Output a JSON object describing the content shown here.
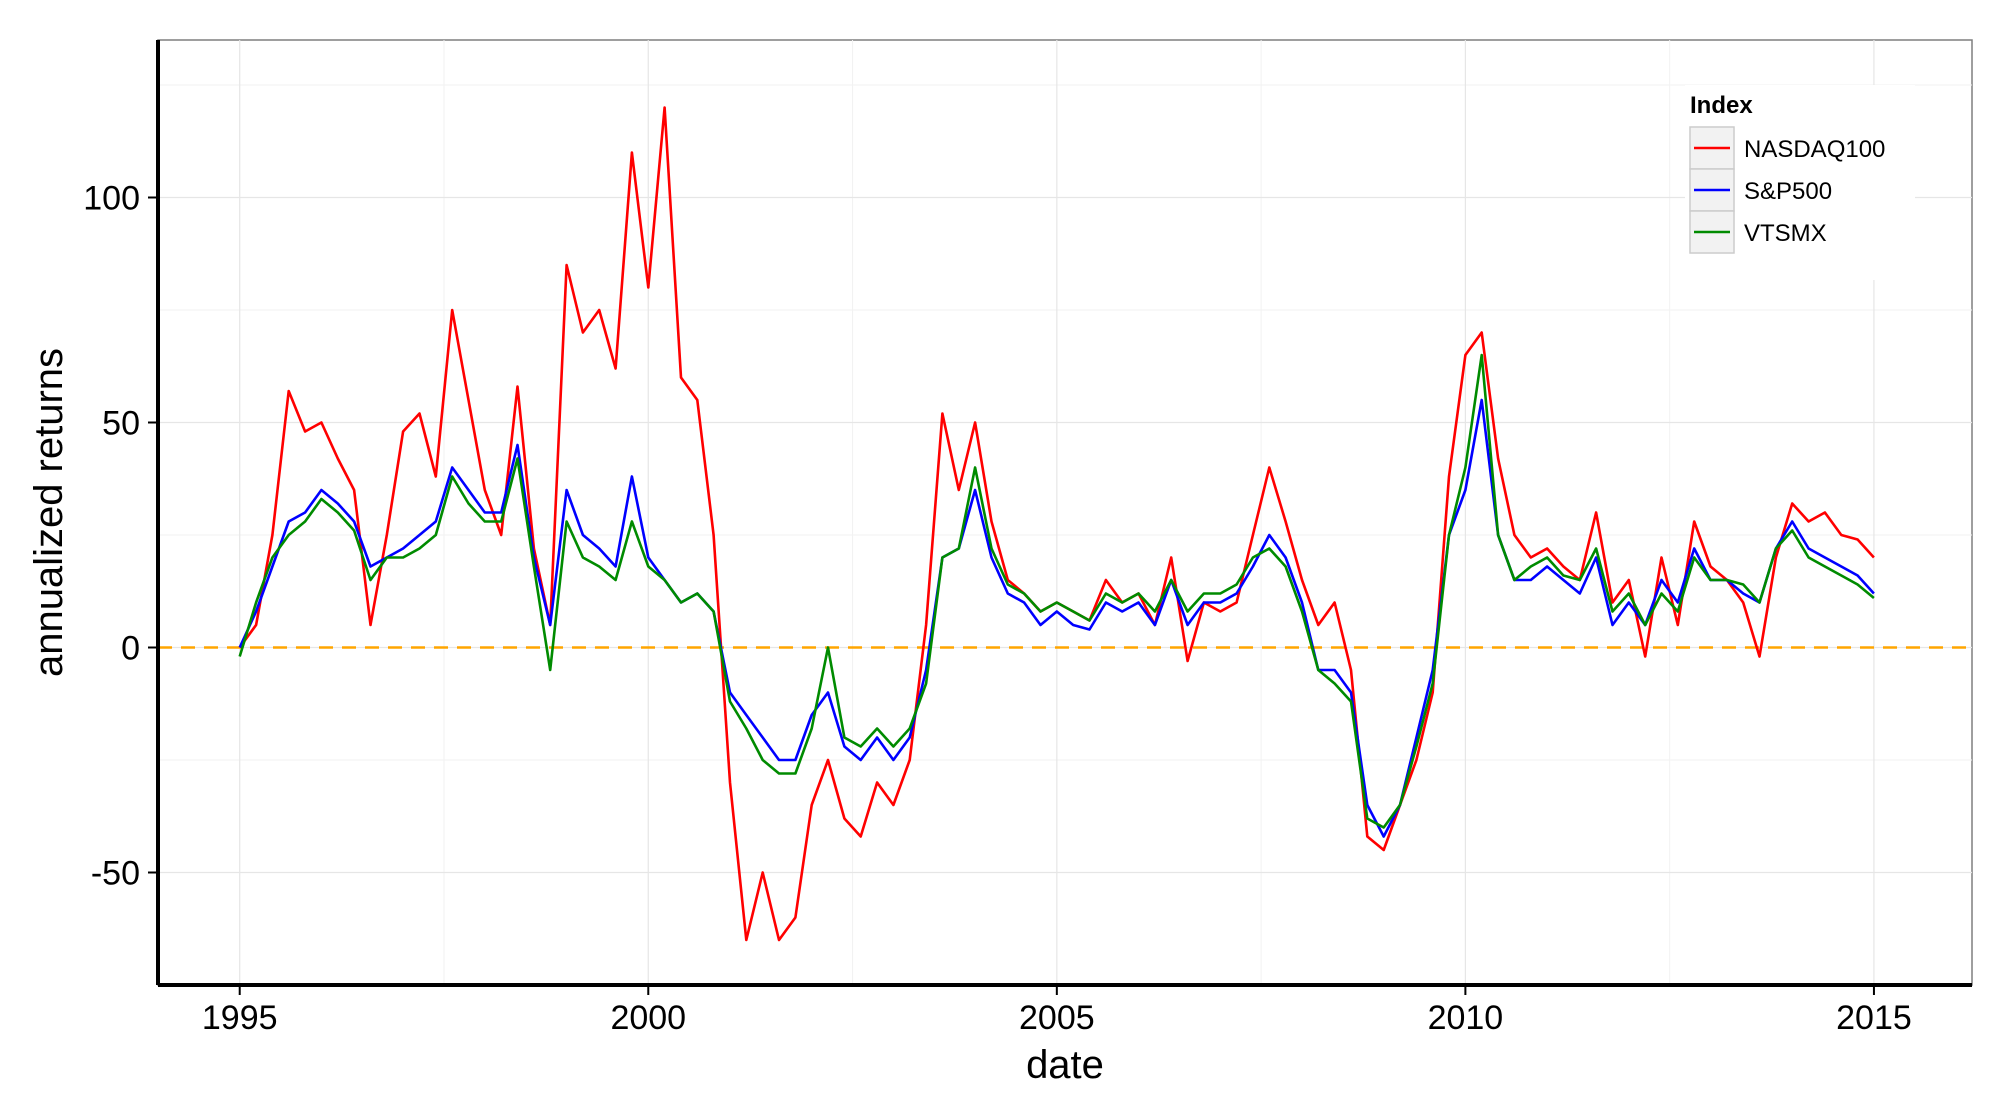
{
  "chart_data": {
    "type": "line",
    "xlabel": "date",
    "ylabel": "annualized returns",
    "xlim": [
      1994.0,
      2016.2
    ],
    "ylim": [
      -75,
      135
    ],
    "x_ticks": [
      1995,
      2000,
      2005,
      2010,
      2015
    ],
    "x_tick_labels": [
      "1995",
      "2000",
      "2005",
      "2010",
      "2015"
    ],
    "y_ticks": [
      -50,
      0,
      50,
      100
    ],
    "y_tick_labels": [
      "-50",
      "0",
      "50",
      "100"
    ],
    "grid": true,
    "reference_line": {
      "y": 0,
      "color": "#FFA500",
      "style": "dashed"
    },
    "legend": {
      "title": "Index",
      "placement": "top-right",
      "entries": [
        "NASDAQ100",
        "S&P500",
        "VTSMX"
      ]
    },
    "series": [
      {
        "name": "NASDAQ100",
        "color": "#FF0000",
        "x": [
          1995.0,
          1995.2,
          1995.4,
          1995.6,
          1995.8,
          1996.0,
          1996.2,
          1996.4,
          1996.6,
          1996.8,
          1997.0,
          1997.2,
          1997.4,
          1997.6,
          1997.8,
          1998.0,
          1998.2,
          1998.4,
          1998.6,
          1998.8,
          1999.0,
          1999.2,
          1999.4,
          1999.6,
          1999.8,
          2000.0,
          2000.2,
          2000.4,
          2000.6,
          2000.8,
          2001.0,
          2001.2,
          2001.4,
          2001.6,
          2001.8,
          2002.0,
          2002.2,
          2002.4,
          2002.6,
          2002.8,
          2003.0,
          2003.2,
          2003.4,
          2003.6,
          2003.8,
          2004.0,
          2004.2,
          2004.4,
          2004.6,
          2004.8,
          2005.0,
          2005.2,
          2005.4,
          2005.6,
          2005.8,
          2006.0,
          2006.2,
          2006.4,
          2006.6,
          2006.8,
          2007.0,
          2007.2,
          2007.4,
          2007.6,
          2007.8,
          2008.0,
          2008.2,
          2008.4,
          2008.6,
          2008.8,
          2009.0,
          2009.2,
          2009.4,
          2009.6,
          2009.8,
          2010.0,
          2010.2,
          2010.4,
          2010.6,
          2010.8,
          2011.0,
          2011.2,
          2011.4,
          2011.6,
          2011.8,
          2012.0,
          2012.2,
          2012.4,
          2012.6,
          2012.8,
          2013.0,
          2013.2,
          2013.4,
          2013.6,
          2013.8,
          2014.0,
          2014.2,
          2014.4,
          2014.6,
          2014.8,
          2015.0
        ],
        "y": [
          0,
          5,
          25,
          57,
          48,
          50,
          42,
          35,
          5,
          25,
          48,
          52,
          38,
          75,
          55,
          35,
          25,
          58,
          22,
          5,
          85,
          70,
          75,
          62,
          110,
          80,
          120,
          60,
          55,
          25,
          -30,
          -65,
          -50,
          -65,
          -60,
          -35,
          -25,
          -38,
          -42,
          -30,
          -35,
          -25,
          5,
          52,
          35,
          50,
          28,
          15,
          12,
          8,
          10,
          8,
          6,
          15,
          10,
          12,
          5,
          20,
          -3,
          10,
          8,
          10,
          25,
          40,
          28,
          15,
          5,
          10,
          -5,
          -42,
          -45,
          -35,
          -25,
          -10,
          38,
          65,
          70,
          42,
          25,
          20,
          22,
          18,
          15,
          30,
          10,
          15,
          -2,
          20,
          5,
          28,
          18,
          15,
          10,
          -2,
          20,
          32,
          28,
          30,
          25,
          24,
          20
        ]
      },
      {
        "name": "S&P500",
        "color": "#0000FF",
        "x": [
          1995.0,
          1995.2,
          1995.4,
          1995.6,
          1995.8,
          1996.0,
          1996.2,
          1996.4,
          1996.6,
          1996.8,
          1997.0,
          1997.2,
          1997.4,
          1997.6,
          1997.8,
          1998.0,
          1998.2,
          1998.4,
          1998.6,
          1998.8,
          1999.0,
          1999.2,
          1999.4,
          1999.6,
          1999.8,
          2000.0,
          2000.2,
          2000.4,
          2000.6,
          2000.8,
          2001.0,
          2001.2,
          2001.4,
          2001.6,
          2001.8,
          2002.0,
          2002.2,
          2002.4,
          2002.6,
          2002.8,
          2003.0,
          2003.2,
          2003.4,
          2003.6,
          2003.8,
          2004.0,
          2004.2,
          2004.4,
          2004.6,
          2004.8,
          2005.0,
          2005.2,
          2005.4,
          2005.6,
          2005.8,
          2006.0,
          2006.2,
          2006.4,
          2006.6,
          2006.8,
          2007.0,
          2007.2,
          2007.4,
          2007.6,
          2007.8,
          2008.0,
          2008.2,
          2008.4,
          2008.6,
          2008.8,
          2009.0,
          2009.2,
          2009.4,
          2009.6,
          2009.8,
          2010.0,
          2010.2,
          2010.4,
          2010.6,
          2010.8,
          2011.0,
          2011.2,
          2011.4,
          2011.6,
          2011.8,
          2012.0,
          2012.2,
          2012.4,
          2012.6,
          2012.8,
          2013.0,
          2013.2,
          2013.4,
          2013.6,
          2013.8,
          2014.0,
          2014.2,
          2014.4,
          2014.6,
          2014.8,
          2015.0
        ],
        "y": [
          0,
          8,
          18,
          28,
          30,
          35,
          32,
          28,
          18,
          20,
          22,
          25,
          28,
          40,
          35,
          30,
          30,
          45,
          20,
          5,
          35,
          25,
          22,
          18,
          38,
          20,
          15,
          10,
          12,
          8,
          -10,
          -15,
          -20,
          -25,
          -25,
          -15,
          -10,
          -22,
          -25,
          -20,
          -25,
          -20,
          -5,
          20,
          22,
          35,
          20,
          12,
          10,
          5,
          8,
          5,
          4,
          10,
          8,
          10,
          5,
          15,
          5,
          10,
          10,
          12,
          18,
          25,
          20,
          10,
          -5,
          -5,
          -10,
          -35,
          -42,
          -35,
          -20,
          -5,
          25,
          35,
          55,
          25,
          15,
          15,
          18,
          15,
          12,
          20,
          5,
          10,
          5,
          15,
          10,
          22,
          15,
          15,
          12,
          10,
          22,
          28,
          22,
          20,
          18,
          16,
          12
        ]
      },
      {
        "name": "VTSMX",
        "color": "#008B00",
        "x": [
          1995.0,
          1995.2,
          1995.4,
          1995.6,
          1995.8,
          1996.0,
          1996.2,
          1996.4,
          1996.6,
          1996.8,
          1997.0,
          1997.2,
          1997.4,
          1997.6,
          1997.8,
          1998.0,
          1998.2,
          1998.4,
          1998.6,
          1998.8,
          1999.0,
          1999.2,
          1999.4,
          1999.6,
          1999.8,
          2000.0,
          2000.2,
          2000.4,
          2000.6,
          2000.8,
          2001.0,
          2001.2,
          2001.4,
          2001.6,
          2001.8,
          2002.0,
          2002.2,
          2002.4,
          2002.6,
          2002.8,
          2003.0,
          2003.2,
          2003.4,
          2003.6,
          2003.8,
          2004.0,
          2004.2,
          2004.4,
          2004.6,
          2004.8,
          2005.0,
          2005.2,
          2005.4,
          2005.6,
          2005.8,
          2006.0,
          2006.2,
          2006.4,
          2006.6,
          2006.8,
          2007.0,
          2007.2,
          2007.4,
          2007.6,
          2007.8,
          2008.0,
          2008.2,
          2008.4,
          2008.6,
          2008.8,
          2009.0,
          2009.2,
          2009.4,
          2009.6,
          2009.8,
          2010.0,
          2010.2,
          2010.4,
          2010.6,
          2010.8,
          2011.0,
          2011.2,
          2011.4,
          2011.6,
          2011.8,
          2012.0,
          2012.2,
          2012.4,
          2012.6,
          2012.8,
          2013.0,
          2013.2,
          2013.4,
          2013.6,
          2013.8,
          2014.0,
          2014.2,
          2014.4,
          2014.6,
          2014.8,
          2015.0
        ],
        "y": [
          -2,
          10,
          20,
          25,
          28,
          33,
          30,
          26,
          15,
          20,
          20,
          22,
          25,
          38,
          32,
          28,
          28,
          42,
          18,
          -5,
          28,
          20,
          18,
          15,
          28,
          18,
          15,
          10,
          12,
          8,
          -12,
          -18,
          -25,
          -28,
          -28,
          -18,
          0,
          -20,
          -22,
          -18,
          -22,
          -18,
          -8,
          20,
          22,
          40,
          22,
          14,
          12,
          8,
          10,
          8,
          6,
          12,
          10,
          12,
          8,
          15,
          8,
          12,
          12,
          14,
          20,
          22,
          18,
          8,
          -5,
          -8,
          -12,
          -38,
          -40,
          -35,
          -22,
          -8,
          25,
          40,
          65,
          25,
          15,
          18,
          20,
          16,
          15,
          22,
          8,
          12,
          5,
          12,
          8,
          20,
          15,
          15,
          14,
          10,
          22,
          26,
          20,
          18,
          16,
          14,
          11
        ]
      }
    ]
  }
}
